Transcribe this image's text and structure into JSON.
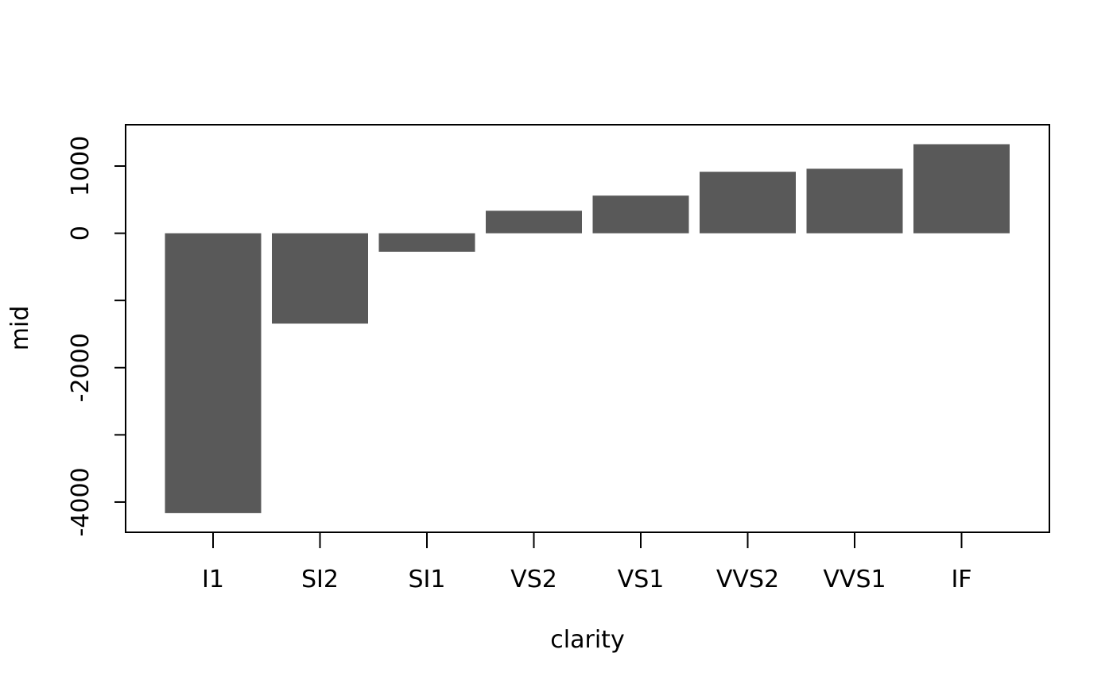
{
  "chart_data": {
    "type": "bar",
    "title": "",
    "xlabel": "clarity",
    "ylabel": "mid",
    "categories": [
      "I1",
      "SI2",
      "SI1",
      "VS2",
      "VS1",
      "VVS2",
      "VVS1",
      "IF"
    ],
    "values": [
      -4165,
      -1345,
      -275,
      335,
      560,
      915,
      960,
      1325
    ],
    "yticks": [
      -4000,
      -3000,
      -2000,
      -1000,
      0,
      1000
    ],
    "ytick_labels": [
      "-4000",
      "",
      "-2000",
      "",
      "0",
      "1000"
    ],
    "ylim": [
      -4450,
      1615
    ],
    "grid": false,
    "legend": "none",
    "bar_color": "#595959"
  }
}
